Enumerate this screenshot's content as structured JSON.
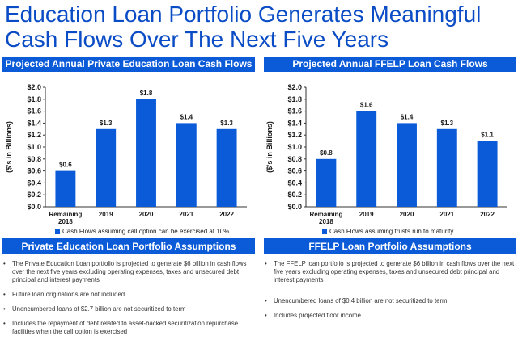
{
  "title": {
    "line1": "Education Loan Portfolio Generates Meaningful",
    "line2": "Cash Flows Over The Next Five Years"
  },
  "colors": {
    "accent": "#0b5bd8",
    "title": "#0a4cc6"
  },
  "left": {
    "header": "Projected Annual Private Education Loan Cash Flows",
    "legend": "Cash Flows assuming call option can be exercised at 10%",
    "assumptions_header": "Private Education Loan Portfolio Assumptions",
    "bullets": [
      "The Private Education Loan portfolio is projected to generate $6 billion in cash flows over the next five years excluding operating expenses, taxes and unsecured debt principal and interest payments",
      "Future loan originations are not included",
      "Unencumbered loans of $2.7 billion are not securitized to term",
      "Includes the repayment of debt related to asset-backed securitization repurchase facilities when the call option is exercised"
    ]
  },
  "right": {
    "header": "Projected Annual FFELP Loan Cash Flows",
    "legend": "Cash Flows assuming trusts run to maturity",
    "assumptions_header": "FFELP Loan Portfolio Assumptions",
    "bullets": [
      "The FFELP loan portfolio is projected to generate $6 billion in cash flows over the next five years excluding operating expenses, taxes and unsecured debt principal and interest payments",
      "",
      "Unencumbered loans of $0.4 billion are not securitized to term",
      "Includes projected floor income"
    ]
  },
  "chart_data": [
    {
      "type": "bar",
      "categories": [
        "Remaining 2018",
        "2019",
        "2020",
        "2021",
        "2022"
      ],
      "values": [
        0.6,
        1.3,
        1.8,
        1.4,
        1.3
      ],
      "data_labels": [
        "$0.6",
        "$1.3",
        "$1.8",
        "$1.4",
        "$1.3"
      ],
      "ylabel": "($'s in Billions)",
      "ylim": [
        0,
        2.0
      ],
      "yticks": [
        "$0.0",
        "$0.2",
        "$0.4",
        "$0.6",
        "$0.8",
        "$1.0",
        "$1.2",
        "$1.4",
        "$1.6",
        "$1.8",
        "$2.0"
      ],
      "series": [
        {
          "name": "Cash Flows assuming call option can be exercised at 10%",
          "values": [
            0.6,
            1.3,
            1.8,
            1.4,
            1.3
          ]
        }
      ],
      "legend": "bottom",
      "grid": false
    },
    {
      "type": "bar",
      "categories": [
        "Remaining 2018",
        "2019",
        "2020",
        "2021",
        "2022"
      ],
      "values": [
        0.8,
        1.6,
        1.4,
        1.3,
        1.1
      ],
      "data_labels": [
        "$0.8",
        "$1.6",
        "$1.4",
        "$1.3",
        "$1.1"
      ],
      "ylabel": "($'s in Billions)",
      "ylim": [
        0,
        2.0
      ],
      "yticks": [
        "$0.0",
        "$0.2",
        "$0.4",
        "$0.6",
        "$0.8",
        "$1.0",
        "$1.2",
        "$1.4",
        "$1.6",
        "$1.8",
        "$2.0"
      ],
      "series": [
        {
          "name": "Cash Flows assuming trusts run to maturity",
          "values": [
            0.8,
            1.6,
            1.4,
            1.3,
            1.1
          ]
        }
      ],
      "legend": "bottom",
      "grid": false
    }
  ]
}
